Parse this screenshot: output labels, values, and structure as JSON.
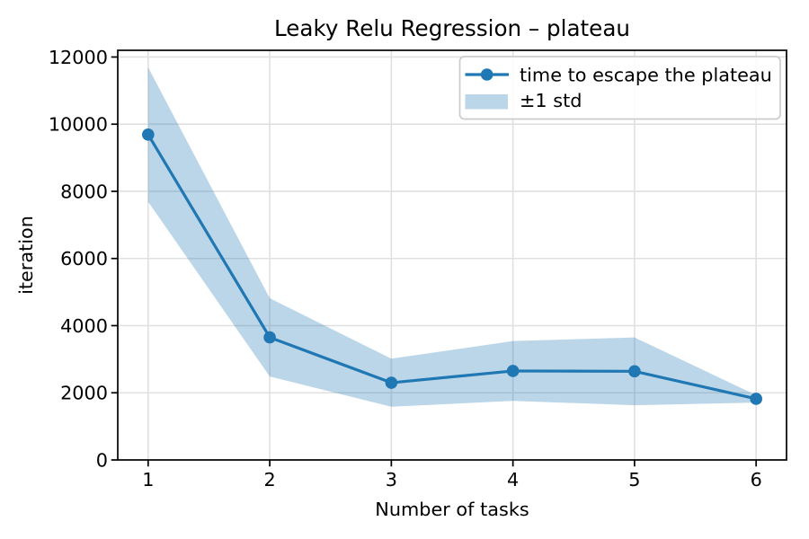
{
  "figure": {
    "background": "#ffffff"
  },
  "chart_data": {
    "type": "line",
    "title": "Leaky Relu Regression – plateau",
    "xlabel": "Number of tasks",
    "ylabel": "iteration",
    "x": [
      1,
      2,
      3,
      4,
      5,
      6
    ],
    "series": [
      {
        "name": "time to escape the plateau",
        "values": [
          9690,
          3650,
          2300,
          2650,
          2640,
          1820
        ],
        "color": "#1f77b4",
        "marker": "circle",
        "line_width": 3.2,
        "marker_radius": 6.8
      }
    ],
    "band": {
      "name": "±1 std",
      "std": [
        2000,
        1165,
        715,
        890,
        1010,
        110
      ],
      "color": "#1f77b4",
      "opacity": 0.3
    },
    "xlim": [
      0.75,
      6.25
    ],
    "ylim": [
      0,
      12200
    ],
    "xticks": [
      1,
      2,
      3,
      4,
      5,
      6
    ],
    "xticklabels": [
      "1",
      "2",
      "3",
      "4",
      "5",
      "6"
    ],
    "yticks": [
      0,
      2000,
      4000,
      6000,
      8000,
      10000,
      12000
    ],
    "yticklabels": [
      "0",
      "2000",
      "4000",
      "6000",
      "8000",
      "10000",
      "12000"
    ],
    "grid": true,
    "legend": {
      "position": "upper right",
      "entries": [
        "time to escape the plateau",
        "±1 std"
      ]
    },
    "colors": {
      "line": "#1f77b4",
      "band_fill": "#1f77b4",
      "grid": "#e0e0e0",
      "spine": "#000000",
      "text": "#000000",
      "legend_edge": "#cccccc"
    }
  }
}
